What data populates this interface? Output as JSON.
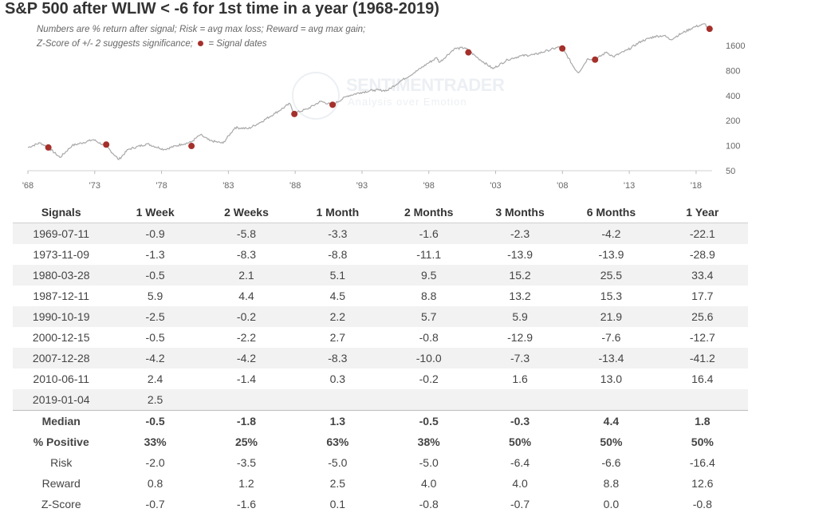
{
  "title": "S&P 500 after WLIW < -6 for 1st time in a year (1968-2019)",
  "notes": {
    "line1": "Numbers are % return after signal; Risk = avg max loss; Reward = avg max gain;",
    "line2_a": "Z-Score of +/- 2 suggests significance;",
    "line2_b": "= Signal dates"
  },
  "watermark": {
    "brand": "SENTIMENTRADER",
    "tagline": "Analysis over Emotion"
  },
  "colors": {
    "line": "#a8a8a8",
    "signal": "#a5302b",
    "negative": "#a23a35",
    "text": "#444444",
    "band": "#f2f2f2"
  },
  "chart_data": {
    "type": "line",
    "title": "S&P 500 after WLIW < -6 for 1st time in a year (1968-2019)",
    "y_scale": "log",
    "ylim": [
      50,
      2900
    ],
    "y_ticks": [
      50,
      100,
      200,
      400,
      800,
      1600
    ],
    "y_tick_labels": [
      "50",
      "100",
      "200",
      "400",
      "800",
      "1600"
    ],
    "xlim": [
      1968.0,
      2019.2
    ],
    "x_ticks": [
      1968,
      1973,
      1978,
      1983,
      1988,
      1993,
      1998,
      2003,
      2008,
      2013,
      2018
    ],
    "x_tick_labels": [
      "'68",
      "'73",
      "'78",
      "'83",
      "'88",
      "'93",
      "'98",
      "'03",
      "'08",
      "'13",
      "'18"
    ],
    "series": [
      {
        "x": [
          1968.0,
          1968.9,
          1969.5,
          1970.4,
          1971.3,
          1972.9,
          1973.9,
          1974.8,
          1975.5,
          1976.9,
          1978.2,
          1979.5,
          1980.2,
          1980.9,
          1981.6,
          1982.6,
          1983.5,
          1984.5,
          1985.5,
          1986.5,
          1987.6,
          1987.9,
          1988.9,
          1989.9,
          1990.8,
          1991.9,
          1992.9,
          1993.9,
          1994.9,
          1995.9,
          1996.9,
          1997.9,
          1998.6,
          1998.8,
          1999.9,
          2000.7,
          2001.7,
          2002.8,
          2003.9,
          2004.9,
          2005.9,
          2006.9,
          2007.8,
          2008.2,
          2008.9,
          2009.2,
          2009.9,
          2010.5,
          2011.3,
          2011.8,
          2012.9,
          2013.9,
          2014.9,
          2015.6,
          2016.1,
          2016.9,
          2017.9,
          2018.7,
          2018.9,
          2019.1
        ],
        "y": [
          95,
          108,
          96,
          72,
          100,
          118,
          97,
          68,
          90,
          105,
          90,
          104,
          110,
          135,
          115,
          107,
          165,
          160,
          195,
          245,
          320,
          245,
          275,
          340,
          310,
          395,
          435,
          465,
          460,
          600,
          750,
          970,
          1140,
          1000,
          1460,
          1500,
          1120,
          840,
          1080,
          1200,
          1240,
          1390,
          1540,
          1320,
          850,
          750,
          1110,
          1090,
          1330,
          1170,
          1420,
          1800,
          2050,
          2100,
          1880,
          2230,
          2680,
          2900,
          2450,
          2520
        ]
      }
    ],
    "signals": [
      {
        "date": "1969-07-11",
        "x": 1969.53,
        "y": 95
      },
      {
        "date": "1973-11-09",
        "x": 1973.86,
        "y": 103
      },
      {
        "date": "1980-03-28",
        "x": 1980.24,
        "y": 99
      },
      {
        "date": "1987-12-11",
        "x": 1987.94,
        "y": 240
      },
      {
        "date": "1990-10-19",
        "x": 1990.8,
        "y": 310
      },
      {
        "date": "2000-12-15",
        "x": 2000.96,
        "y": 1320
      },
      {
        "date": "2007-12-28",
        "x": 2007.99,
        "y": 1470
      },
      {
        "date": "2010-06-11",
        "x": 2010.44,
        "y": 1080
      },
      {
        "date": "2019-01-04",
        "x": 2019.01,
        "y": 2530
      }
    ]
  },
  "table": {
    "headers": [
      "Signals",
      "1 Week",
      "2 Weeks",
      "1 Month",
      "2 Months",
      "3 Months",
      "6 Months",
      "1 Year"
    ],
    "rows": [
      [
        "1969-07-11",
        "-0.9",
        "-5.8",
        "-3.3",
        "-1.6",
        "-2.3",
        "-4.2",
        "-22.1"
      ],
      [
        "1973-11-09",
        "-1.3",
        "-8.3",
        "-8.8",
        "-11.1",
        "-13.9",
        "-13.9",
        "-28.9"
      ],
      [
        "1980-03-28",
        "-0.5",
        "2.1",
        "5.1",
        "9.5",
        "15.2",
        "25.5",
        "33.4"
      ],
      [
        "1987-12-11",
        "5.9",
        "4.4",
        "4.5",
        "8.8",
        "13.2",
        "15.3",
        "17.7"
      ],
      [
        "1990-10-19",
        "-2.5",
        "-0.2",
        "2.2",
        "5.7",
        "5.9",
        "21.9",
        "25.6"
      ],
      [
        "2000-12-15",
        "-0.5",
        "-2.2",
        "2.7",
        "-0.8",
        "-12.9",
        "-7.6",
        "-12.7"
      ],
      [
        "2007-12-28",
        "-4.2",
        "-4.2",
        "-8.3",
        "-10.0",
        "-7.3",
        "-13.4",
        "-41.2"
      ],
      [
        "2010-06-11",
        "2.4",
        "-1.4",
        "0.3",
        "-0.2",
        "1.6",
        "13.0",
        "16.4"
      ],
      [
        "2019-01-04",
        "2.5",
        "",
        "",
        "",
        "",
        "",
        ""
      ]
    ],
    "summary": [
      {
        "label": "Median",
        "bold": true,
        "values": [
          "-0.5",
          "-1.8",
          "1.3",
          "-0.5",
          "-0.3",
          "4.4",
          "1.8"
        ]
      },
      {
        "label": "% Positive",
        "bold": true,
        "values": [
          "33%",
          "25%",
          "63%",
          "38%",
          "50%",
          "50%",
          "50%"
        ]
      },
      {
        "label": "Risk",
        "bold": false,
        "values": [
          "-2.0",
          "-3.5",
          "-5.0",
          "-5.0",
          "-6.4",
          "-6.6",
          "-16.4"
        ]
      },
      {
        "label": "Reward",
        "bold": false,
        "values": [
          "0.8",
          "1.2",
          "2.5",
          "4.0",
          "4.0",
          "8.8",
          "12.6"
        ]
      },
      {
        "label": "Z-Score",
        "bold": false,
        "values": [
          "-0.7",
          "-1.6",
          "0.1",
          "-0.8",
          "-0.7",
          "0.0",
          "-0.8"
        ]
      }
    ]
  }
}
